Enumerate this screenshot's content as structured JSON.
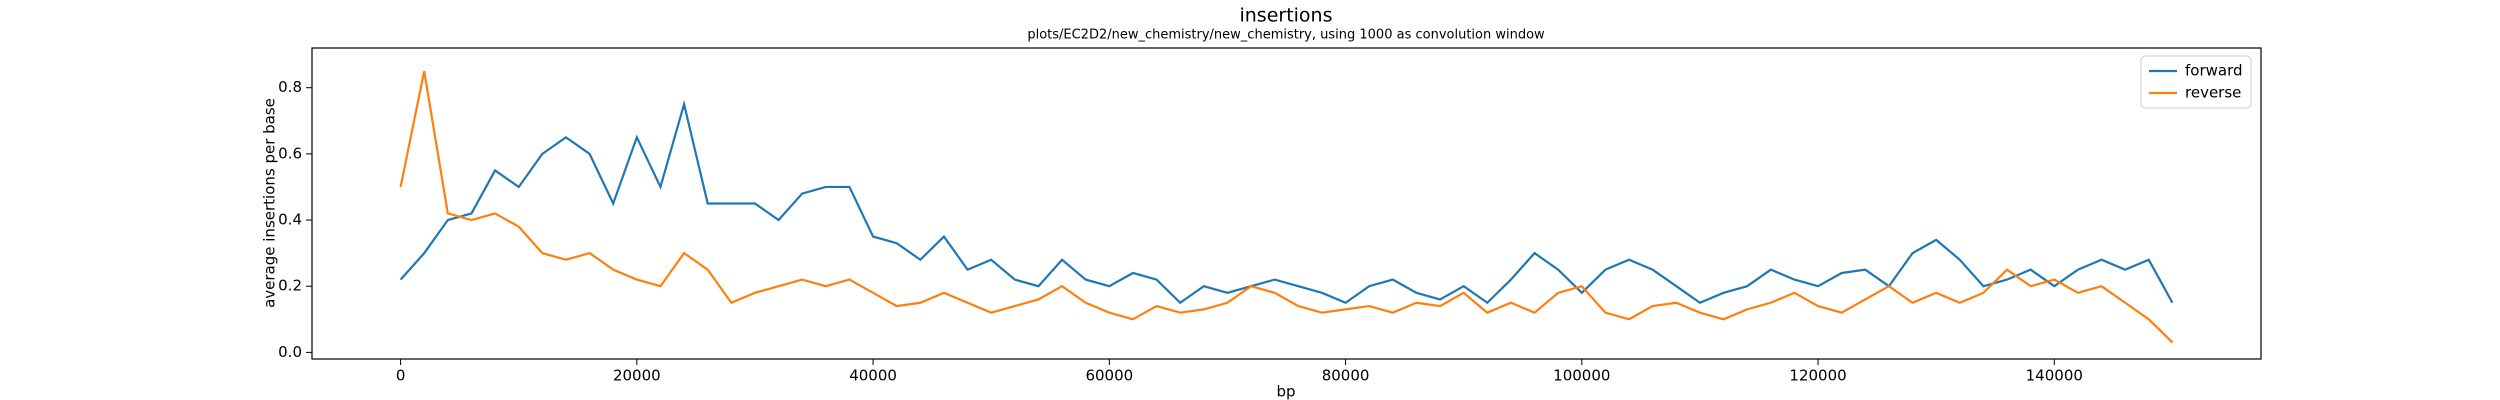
{
  "chart_data": {
    "type": "line",
    "title": "insertions",
    "subtitle": "plots/EC2D2/new_chemistry/new_chemistry, using 1000 as convolution window",
    "xlabel": "bp",
    "ylabel": "average insertions per base",
    "x": [
      0,
      2000,
      4000,
      6000,
      8000,
      10000,
      12000,
      14000,
      16000,
      18000,
      20000,
      22000,
      24000,
      26000,
      28000,
      30000,
      32000,
      34000,
      36000,
      38000,
      40000,
      42000,
      44000,
      46000,
      48000,
      50000,
      52000,
      54000,
      56000,
      58000,
      60000,
      62000,
      64000,
      66000,
      68000,
      70000,
      72000,
      74000,
      76000,
      78000,
      80000,
      82000,
      84000,
      86000,
      88000,
      90000,
      92000,
      94000,
      96000,
      98000,
      100000,
      102000,
      104000,
      106000,
      108000,
      110000,
      112000,
      114000,
      116000,
      118000,
      120000,
      122000,
      124000,
      126000,
      128000,
      130000,
      132000,
      134000,
      136000,
      138000,
      140000,
      142000,
      144000,
      146000,
      148000,
      150000
    ],
    "series": [
      {
        "name": "forward",
        "color": "#1f77b4",
        "values": [
          0.22,
          0.3,
          0.4,
          0.42,
          0.55,
          0.5,
          0.6,
          0.65,
          0.6,
          0.45,
          0.65,
          0.5,
          0.75,
          0.45,
          0.45,
          0.45,
          0.4,
          0.48,
          0.5,
          0.5,
          0.35,
          0.33,
          0.28,
          0.35,
          0.25,
          0.28,
          0.22,
          0.2,
          0.28,
          0.22,
          0.2,
          0.24,
          0.22,
          0.15,
          0.2,
          0.18,
          0.2,
          0.22,
          0.2,
          0.18,
          0.15,
          0.2,
          0.22,
          0.18,
          0.16,
          0.2,
          0.15,
          0.22,
          0.3,
          0.25,
          0.18,
          0.25,
          0.28,
          0.25,
          0.2,
          0.15,
          0.18,
          0.2,
          0.25,
          0.22,
          0.2,
          0.24,
          0.25,
          0.2,
          0.3,
          0.34,
          0.28,
          0.2,
          0.22,
          0.25,
          0.2,
          0.25,
          0.28,
          0.25,
          0.28,
          0.15
        ]
      },
      {
        "name": "reverse",
        "color": "#ff7f0e",
        "values": [
          0.5,
          0.85,
          0.42,
          0.4,
          0.42,
          0.38,
          0.3,
          0.28,
          0.3,
          0.25,
          0.22,
          0.2,
          0.3,
          0.25,
          0.15,
          0.18,
          0.2,
          0.22,
          0.2,
          0.22,
          0.18,
          0.14,
          0.15,
          0.18,
          0.15,
          0.12,
          0.14,
          0.16,
          0.2,
          0.15,
          0.12,
          0.1,
          0.14,
          0.12,
          0.13,
          0.15,
          0.2,
          0.18,
          0.14,
          0.12,
          0.13,
          0.14,
          0.12,
          0.15,
          0.14,
          0.18,
          0.12,
          0.15,
          0.12,
          0.18,
          0.2,
          0.12,
          0.1,
          0.14,
          0.15,
          0.12,
          0.1,
          0.13,
          0.15,
          0.18,
          0.14,
          0.12,
          0.16,
          0.2,
          0.15,
          0.18,
          0.15,
          0.18,
          0.25,
          0.2,
          0.22,
          0.18,
          0.2,
          0.15,
          0.1,
          0.03
        ]
      }
    ],
    "xlim": [
      -7500,
      157500
    ],
    "ylim": [
      -0.02,
      0.92
    ],
    "xticks": [
      0,
      20000,
      40000,
      60000,
      80000,
      100000,
      120000,
      140000
    ],
    "yticks": [
      {
        "value": 0,
        "label": "0.0"
      },
      0.2,
      0.4,
      0.6,
      0.8
    ],
    "legend": "upper right"
  }
}
